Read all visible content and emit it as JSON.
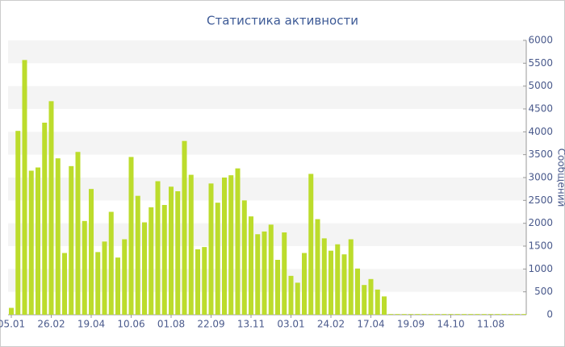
{
  "chart_data": {
    "type": "bar",
    "title": "Статистика активности",
    "y_label": "Сообщений",
    "categories": [
      "05.01",
      null,
      null,
      null,
      null,
      null,
      "26.02",
      null,
      null,
      null,
      null,
      null,
      "19.04",
      null,
      null,
      null,
      null,
      null,
      "10.06",
      null,
      null,
      null,
      null,
      null,
      "01.08",
      null,
      null,
      null,
      null,
      null,
      "22.09",
      null,
      null,
      null,
      null,
      null,
      "13.11",
      null,
      null,
      null,
      null,
      null,
      "03.01",
      null,
      null,
      null,
      null,
      null,
      "24.02",
      null,
      null,
      null,
      null,
      null,
      "17.04",
      null,
      null,
      null,
      null,
      null,
      "19.09",
      null,
      null,
      null,
      null,
      null,
      "14.10",
      null,
      null,
      null,
      null,
      null,
      "11.08",
      null,
      null,
      null,
      null,
      null
    ],
    "values": [
      150,
      4020,
      5570,
      3150,
      3220,
      4200,
      4670,
      3420,
      1350,
      3250,
      3560,
      2050,
      2750,
      1370,
      1600,
      2250,
      1250,
      1650,
      3450,
      2600,
      2020,
      2350,
      2920,
      2400,
      2800,
      2700,
      3800,
      3060,
      1430,
      1480,
      2870,
      2450,
      3000,
      3050,
      3200,
      2500,
      2150,
      1760,
      1820,
      1970,
      1200,
      1800,
      850,
      700,
      1350,
      3080,
      2090,
      1670,
      1400,
      1540,
      1320,
      1650,
      1010,
      650,
      780,
      550,
      400,
      15,
      15,
      15,
      15,
      15,
      15,
      15,
      15,
      15,
      15,
      15,
      15,
      15,
      15,
      15,
      15,
      15,
      15,
      15,
      15,
      15
    ],
    "color": "#bcdc2c",
    "ylim": [
      0,
      6000
    ],
    "yticks": [
      0,
      500,
      1000,
      1500,
      2000,
      2500,
      3000,
      3500,
      4000,
      4500,
      5000,
      5500,
      6000
    ],
    "y_axis_side": "right",
    "grid": true
  }
}
